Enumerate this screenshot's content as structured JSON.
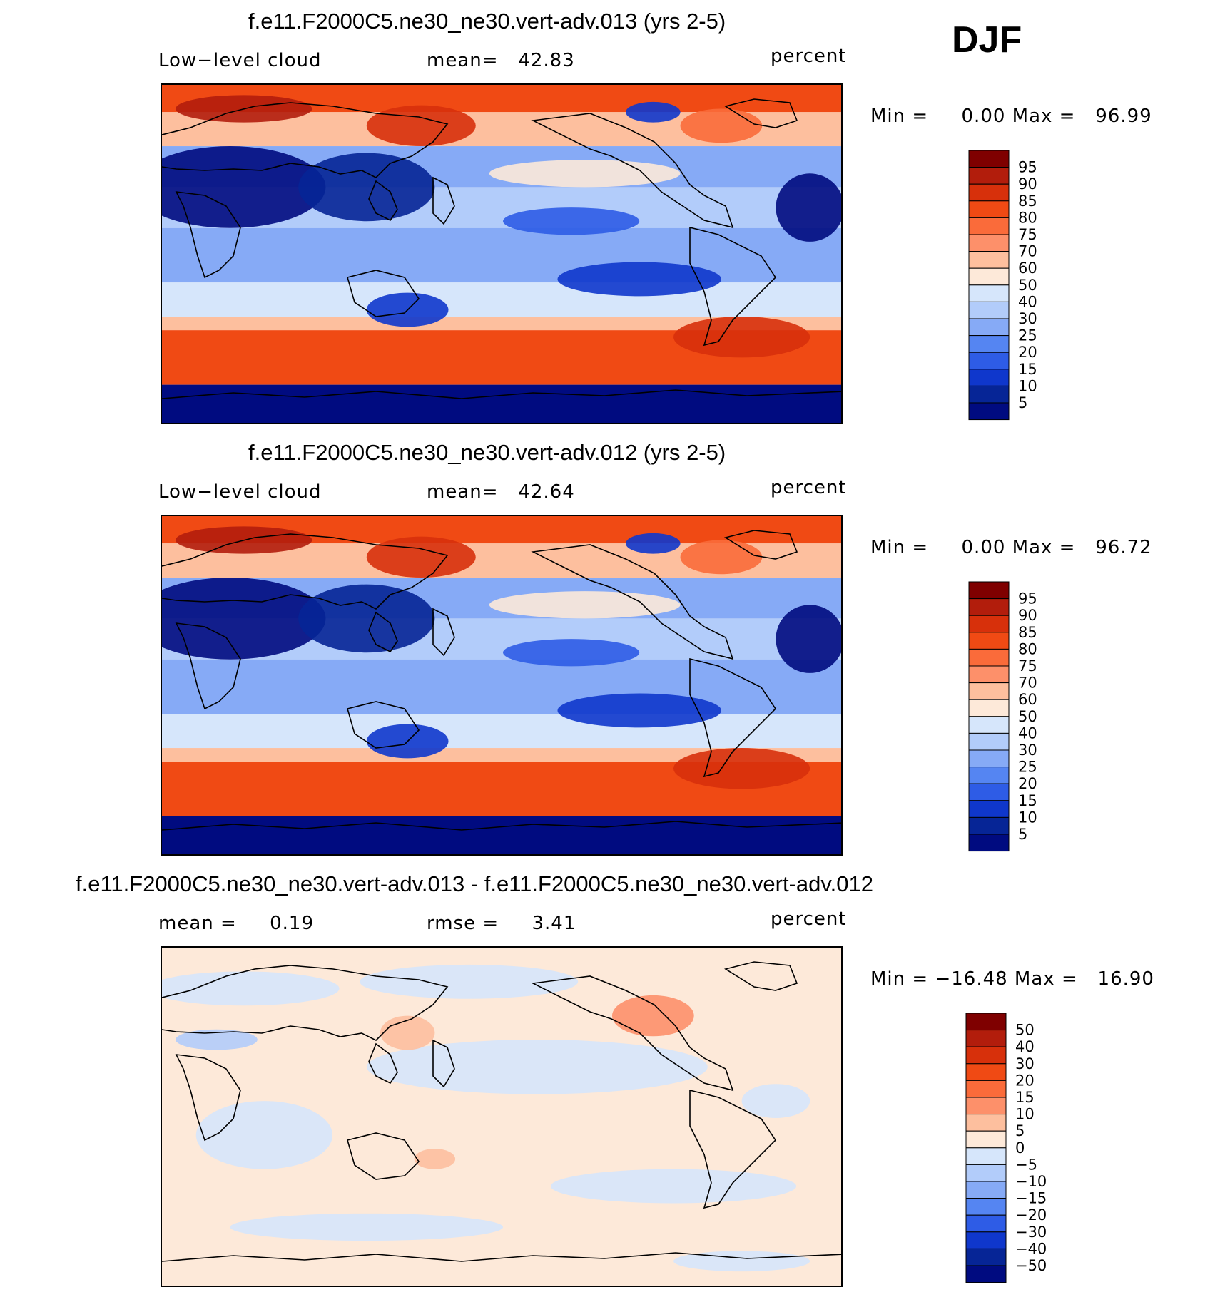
{
  "season": "DJF",
  "panels": [
    {
      "title": "f.e11.F2000C5.ne30_ne30.vert-adv.013 (yrs 2-5)",
      "left_label": "Low−level cloud",
      "center_label": "mean=   42.83",
      "units": "percent",
      "minmax": "Min =     0.00 Max =   96.99"
    },
    {
      "title": "f.e11.F2000C5.ne30_ne30.vert-adv.012 (yrs 2-5)",
      "left_label": "Low−level cloud",
      "center_label": "mean=   42.64",
      "units": "percent",
      "minmax": "Min =     0.00 Max =   96.72"
    },
    {
      "title": "f.e11.F2000C5.ne30_ne30.vert-adv.013 - f.e11.F2000C5.ne30_ne30.vert-adv.012",
      "left_label": "mean =     0.19",
      "center_label": "rmse =     3.41",
      "units": "percent",
      "minmax": "Min = −16.48 Max =   16.90"
    }
  ],
  "chart_data": [
    {
      "type": "heatmap",
      "title": "f.e11.F2000C5.ne30_ne30.vert-adv.013 (yrs 2-5)",
      "variable": "Low−level cloud",
      "units": "percent",
      "mean": 42.83,
      "min": 0.0,
      "max": 96.99,
      "colorbar_labels": [
        "95",
        "90",
        "85",
        "80",
        "75",
        "70",
        "60",
        "50",
        "40",
        "30",
        "25",
        "20",
        "15",
        "10",
        "5"
      ],
      "colors": [
        "#7f0000",
        "#b21d0c",
        "#d7300b",
        "#f04a14",
        "#fa6b3a",
        "#fd906a",
        "#fdbf9e",
        "#fde9d9",
        "#d6e6fb",
        "#b2ccfa",
        "#86aaf6",
        "#5585f2",
        "#2e5ce6",
        "#0f37cc",
        "#062596",
        "#000b80"
      ]
    },
    {
      "type": "heatmap",
      "title": "f.e11.F2000C5.ne30_ne30.vert-adv.012 (yrs 2-5)",
      "variable": "Low−level cloud",
      "units": "percent",
      "mean": 42.64,
      "min": 0.0,
      "max": 96.72,
      "colorbar_labels": [
        "95",
        "90",
        "85",
        "80",
        "75",
        "70",
        "60",
        "50",
        "40",
        "30",
        "25",
        "20",
        "15",
        "10",
        "5"
      ],
      "colors": [
        "#7f0000",
        "#b21d0c",
        "#d7300b",
        "#f04a14",
        "#fa6b3a",
        "#fd906a",
        "#fdbf9e",
        "#fde9d9",
        "#d6e6fb",
        "#b2ccfa",
        "#86aaf6",
        "#5585f2",
        "#2e5ce6",
        "#0f37cc",
        "#062596",
        "#000b80"
      ]
    },
    {
      "type": "heatmap",
      "title": "f.e11.F2000C5.ne30_ne30.vert-adv.013 - f.e11.F2000C5.ne30_ne30.vert-adv.012",
      "units": "percent",
      "mean": 0.19,
      "rmse": 3.41,
      "min": -16.48,
      "max": 16.9,
      "colorbar_labels": [
        "50",
        "40",
        "30",
        "20",
        "15",
        "10",
        "5",
        "0",
        "−5",
        "−10",
        "−15",
        "−20",
        "−30",
        "−40",
        "−50"
      ],
      "colors": [
        "#7f0000",
        "#b21d0c",
        "#d7300b",
        "#f04a14",
        "#fa6b3a",
        "#fd906a",
        "#fdbf9e",
        "#fde9d9",
        "#d6e6fb",
        "#b2ccfa",
        "#86aaf6",
        "#5585f2",
        "#2e5ce6",
        "#0f37cc",
        "#062596",
        "#000b80"
      ]
    }
  ]
}
